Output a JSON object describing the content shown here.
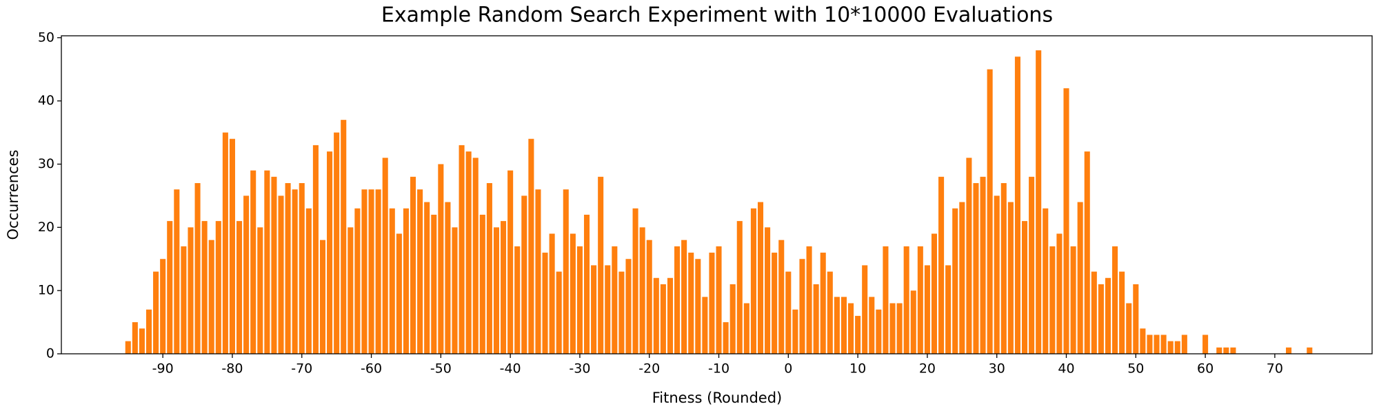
{
  "chart_data": {
    "type": "bar",
    "title": "Example Random Search Experiment with 10*10000 Evaluations",
    "xlabel": "Fitness (Rounded)",
    "ylabel": "Occurrences",
    "color": "#ff7f0e",
    "x": [
      -95,
      -94,
      -93,
      -92,
      -91,
      -90,
      -89,
      -88,
      -87,
      -86,
      -85,
      -84,
      -83,
      -82,
      -81,
      -80,
      -79,
      -78,
      -77,
      -76,
      -75,
      -74,
      -73,
      -72,
      -71,
      -70,
      -69,
      -68,
      -67,
      -66,
      -65,
      -64,
      -63,
      -62,
      -61,
      -60,
      -59,
      -58,
      -57,
      -56,
      -55,
      -54,
      -53,
      -52,
      -51,
      -50,
      -49,
      -48,
      -47,
      -46,
      -45,
      -44,
      -43,
      -42,
      -41,
      -40,
      -39,
      -38,
      -37,
      -36,
      -35,
      -34,
      -33,
      -32,
      -31,
      -30,
      -29,
      -28,
      -27,
      -26,
      -25,
      -24,
      -23,
      -22,
      -21,
      -20,
      -19,
      -18,
      -17,
      -16,
      -15,
      -14,
      -13,
      -12,
      -11,
      -10,
      -9,
      -8,
      -7,
      -6,
      -5,
      -4,
      -3,
      -2,
      -1,
      0,
      1,
      2,
      3,
      4,
      5,
      6,
      7,
      8,
      9,
      10,
      11,
      12,
      13,
      14,
      15,
      16,
      17,
      18,
      19,
      20,
      21,
      22,
      23,
      24,
      25,
      26,
      27,
      28,
      29,
      30,
      31,
      32,
      33,
      34,
      35,
      36,
      37,
      38,
      39,
      40,
      41,
      42,
      43,
      44,
      45,
      46,
      47,
      48,
      49,
      50,
      51,
      52,
      53,
      54,
      55,
      56,
      57,
      58,
      59,
      60,
      61,
      62,
      63,
      64,
      65,
      66,
      67,
      68,
      69,
      70,
      71,
      72,
      73,
      74,
      75
    ],
    "values": [
      2,
      5,
      4,
      7,
      13,
      15,
      21,
      26,
      17,
      20,
      27,
      21,
      18,
      21,
      35,
      34,
      21,
      25,
      29,
      20,
      29,
      28,
      25,
      27,
      26,
      27,
      23,
      33,
      18,
      32,
      35,
      37,
      20,
      23,
      26,
      26,
      26,
      31,
      23,
      19,
      23,
      28,
      26,
      24,
      22,
      30,
      24,
      20,
      33,
      32,
      31,
      22,
      27,
      20,
      21,
      29,
      17,
      25,
      34,
      26,
      16,
      19,
      13,
      26,
      19,
      17,
      22,
      14,
      28,
      14,
      17,
      13,
      15,
      23,
      20,
      18,
      12,
      11,
      12,
      17,
      18,
      16,
      15,
      9,
      16,
      17,
      5,
      11,
      21,
      8,
      23,
      24,
      20,
      16,
      18,
      13,
      7,
      15,
      17,
      11,
      16,
      13,
      9,
      9,
      8,
      6,
      14,
      9,
      7,
      17,
      8,
      8,
      17,
      10,
      17,
      14,
      19,
      28,
      14,
      23,
      24,
      31,
      27,
      28,
      45,
      25,
      27,
      24,
      47,
      21,
      28,
      48,
      23,
      17,
      19,
      42,
      17,
      24,
      32,
      13,
      11,
      12,
      17,
      13,
      8,
      11,
      4,
      3,
      3,
      3,
      2,
      2,
      3,
      0,
      0,
      3,
      0,
      1,
      1,
      1,
      0,
      0,
      0,
      0,
      0,
      0,
      0,
      1,
      0,
      0,
      1
    ],
    "xlim": [
      -104.6,
      84
    ],
    "ylim": [
      0,
      50.3
    ],
    "xticks": [
      -90,
      -80,
      -70,
      -60,
      -50,
      -40,
      -30,
      -20,
      -10,
      0,
      10,
      20,
      30,
      40,
      50,
      60,
      70
    ],
    "yticks": [
      0,
      10,
      20,
      30,
      40,
      50
    ]
  }
}
